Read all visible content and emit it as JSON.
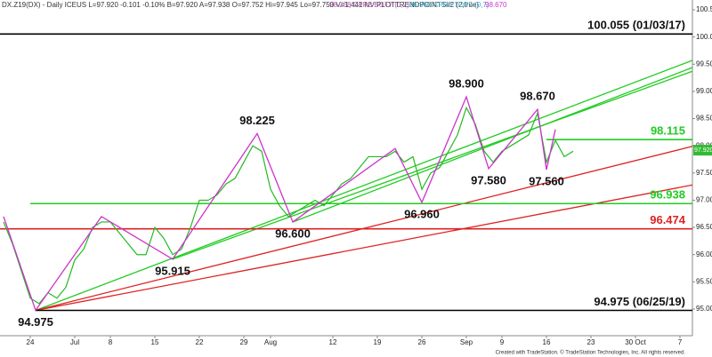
{
  "chart_data": {
    "type": "line",
    "header": [
      "DX.Z19(DX) - Daily ICEUS L=97.920 -0.101 -0.10% B=97.920 A=97.938 O=97.752 Hi=97.945 Lo=97.750 V=1,441 NV PLOTTRENDPOINTS#2 (2,true)",
      "98.258 CPR3 BOT7 (0,7)",
      "96.960 CPR3 TOP7 (0,7)",
      "98.670"
    ],
    "footer": "Created with TradeStation. © TradeStation Technologies, Inc. All rights reserved.",
    "x": [
      -3,
      -2,
      -1,
      0,
      1,
      2,
      3,
      4,
      5,
      6,
      7,
      8,
      9,
      10,
      11,
      12,
      13,
      14,
      15,
      16,
      17,
      18,
      19,
      20,
      21,
      22,
      23,
      24,
      25,
      26,
      27,
      28,
      29,
      30,
      31,
      32,
      33,
      34,
      35,
      36,
      37,
      38,
      39,
      40,
      41,
      42,
      43,
      44,
      45,
      46,
      47,
      48,
      49,
      50,
      51,
      52,
      53,
      54,
      55,
      56,
      57,
      58,
      59,
      60,
      61
    ],
    "values": [
      96.6,
      96.2,
      95.7,
      95.2,
      95.1,
      95.3,
      95.2,
      95.4,
      95.9,
      96.1,
      96.5,
      96.6,
      96.6,
      96.4,
      96.2,
      96.0,
      96.0,
      96.5,
      96.3,
      96.0,
      96.1,
      96.5,
      97.0,
      97.0,
      97.1,
      97.3,
      97.4,
      97.7,
      98.0,
      97.9,
      97.2,
      96.9,
      96.7,
      96.8,
      96.9,
      97.0,
      96.9,
      97.1,
      97.3,
      97.4,
      97.6,
      97.8,
      97.8,
      97.8,
      97.9,
      97.7,
      97.8,
      97.2,
      97.5,
      97.6,
      97.9,
      98.2,
      98.7,
      98.4,
      97.9,
      97.7,
      97.9,
      98.0,
      98.1,
      98.2,
      98.6,
      97.7,
      98.1,
      97.8,
      97.9
    ],
    "color": "#22bb22",
    "swings": {
      "x": [
        -3,
        0.6,
        8,
        16,
        25.5,
        29.5,
        41,
        44,
        49,
        51.5,
        57,
        58,
        59
      ],
      "values": [
        96.7,
        94.975,
        96.7,
        95.915,
        98.225,
        96.6,
        97.95,
        96.96,
        98.9,
        97.58,
        98.67,
        97.56,
        98.3
      ],
      "value_labels": [
        null,
        "94.975",
        null,
        "95.915",
        "98.225",
        "96.600",
        null,
        "96.960",
        "98.900",
        "97.580",
        "98.670",
        "97.560",
        null
      ],
      "color": "#cc33cc"
    },
    "levels": [
      {
        "value": 100.055,
        "label": "100.055 (01/03/17)",
        "color": "#000000",
        "from": -3.4
      },
      {
        "value": 98.115,
        "label": "98.115",
        "color": "#22cc22",
        "from": 58
      },
      {
        "value": 96.938,
        "label": "96.938",
        "color": "#22cc22",
        "from": 0
      },
      {
        "value": 96.474,
        "label": "96.474",
        "color": "#dd2222",
        "from": -3.4
      },
      {
        "value": 94.975,
        "label": "94.975 (06/25/19)",
        "color": "#000000",
        "from": 0.6
      }
    ],
    "trendlines": [
      {
        "x": [
          0.6,
          74.4
        ],
        "values": [
          94.975,
          99.57
        ],
        "color": "#22cc22"
      },
      {
        "x": [
          16,
          74.4
        ],
        "values": [
          95.915,
          99.37
        ],
        "color": "#22cc22"
      },
      {
        "x": [
          29.5,
          74.4
        ],
        "values": [
          96.6,
          99.44
        ],
        "color": "#22cc22"
      },
      {
        "x": [
          0.6,
          74.4
        ],
        "values": [
          94.975,
          97.99
        ],
        "color": "#dd2222"
      },
      {
        "x": [
          0.6,
          74.4
        ],
        "values": [
          94.975,
          97.28
        ],
        "color": "#dd2222"
      }
    ],
    "last": {
      "value": 97.92,
      "label": "97.920"
    },
    "xlim": [
      -3.4,
      74.4
    ],
    "ylim": [
      94.51,
      100.68
    ],
    "xticks": [
      {
        "value": 0,
        "label": "24"
      },
      {
        "value": 5,
        "label": "Jul"
      },
      {
        "value": 9,
        "label": "8"
      },
      {
        "value": 14,
        "label": "15"
      },
      {
        "value": 19,
        "label": "22"
      },
      {
        "value": 24,
        "label": "29"
      },
      {
        "value": 27,
        "label": "Aug"
      },
      {
        "value": 34,
        "label": "12"
      },
      {
        "value": 39,
        "label": "19"
      },
      {
        "value": 44,
        "label": "26"
      },
      {
        "value": 49,
        "label": "Sep"
      },
      {
        "value": 53,
        "label": "9"
      },
      {
        "value": 58,
        "label": "16"
      },
      {
        "value": 63,
        "label": "23"
      },
      {
        "value": 68,
        "label": "30 Oct"
      },
      {
        "value": 73,
        "label": "7"
      }
    ],
    "yticks": [
      {
        "value": 95.0,
        "label": "95.00"
      },
      {
        "value": 95.5,
        "label": "95.50"
      },
      {
        "value": 96.0,
        "label": "96.00"
      },
      {
        "value": 96.5,
        "label": "96.50"
      },
      {
        "value": 97.0,
        "label": "97.00"
      },
      {
        "value": 97.5,
        "label": "97.50"
      },
      {
        "value": 98.0,
        "label": "98.00"
      },
      {
        "value": 98.5,
        "label": "98.50"
      },
      {
        "value": 99.0,
        "label": "99.00"
      },
      {
        "value": 99.5,
        "label": "99.50"
      },
      {
        "value": 100.0,
        "label": "100.00"
      },
      {
        "value": 100.5,
        "label": "100.50"
      }
    ]
  }
}
